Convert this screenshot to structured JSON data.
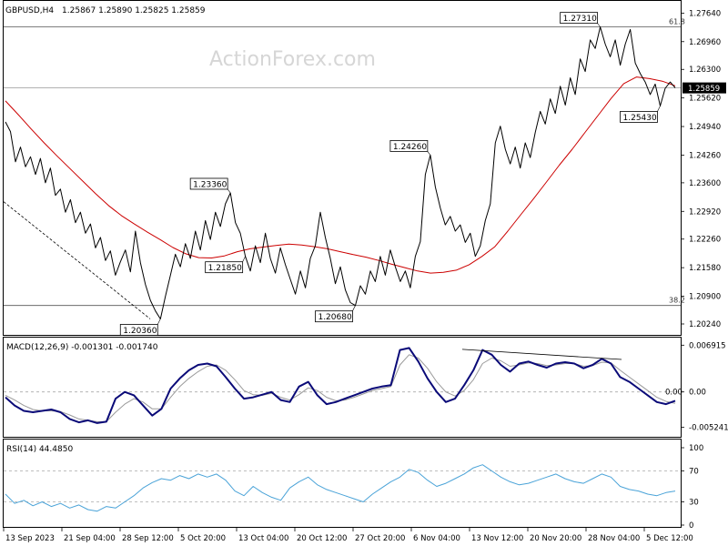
{
  "header": {
    "symbol": "GBPUSD,H4",
    "ohlc": "1.25867 1.25890 1.25825 1.25859"
  },
  "watermark": "ActionForex.com",
  "colors": {
    "price": "#000000",
    "ma": "#cc0000",
    "macd": "#0a0a78",
    "signal": "#9a9a9a",
    "rsi": "#4aa3d8",
    "current_price_bg": "#000000"
  },
  "chart_data": [
    {
      "type": "line",
      "panel": "price",
      "x_labels": [
        "13 Sep 2023",
        "21 Sep 04:00",
        "28 Sep 12:00",
        "5 Oct 20:00",
        "13 Oct 04:00",
        "20 Oct 12:00",
        "27 Oct 20:00",
        "6 Nov 04:00",
        "13 Nov 12:00",
        "20 Nov 20:00",
        "28 Nov 04:00",
        "5 Dec 12:00"
      ],
      "ylim": [
        1.1998,
        1.2793
      ],
      "y_ticks": [
        "1.27640",
        "1.26960",
        "1.26300",
        "1.25620",
        "1.24940",
        "1.24260",
        "1.23600",
        "1.22920",
        "1.22260",
        "1.21580",
        "1.20900",
        "1.20240"
      ],
      "current_price": "1.25859",
      "current_price_value": 1.25859,
      "levels": [
        {
          "label": "61.8",
          "value": 1.2731
        },
        {
          "label": "38.2",
          "value": 1.2068
        }
      ],
      "annotations": [
        {
          "text": "1.27310",
          "value": 1.2731
        },
        {
          "text": "1.23360",
          "value": 1.2336
        },
        {
          "text": "1.24260",
          "value": 1.2426
        },
        {
          "text": "1.21850",
          "value": 1.2185
        },
        {
          "text": "1.20360",
          "value": 1.2036
        },
        {
          "text": "1.20680",
          "value": 1.2068
        },
        {
          "text": "1.25430",
          "value": 1.2543
        }
      ],
      "series": [
        {
          "role": "price",
          "values": [
            1.2505,
            1.2482,
            1.241,
            1.2445,
            1.2398,
            1.2422,
            1.238,
            1.2418,
            1.236,
            1.2395,
            1.233,
            1.2345,
            1.229,
            1.232,
            1.2265,
            1.229,
            1.224,
            1.2262,
            1.2205,
            1.223,
            1.2175,
            1.2198,
            1.214,
            1.2172,
            1.22,
            1.2148,
            1.2245,
            1.217,
            1.2118,
            1.208,
            1.2055,
            1.2036,
            1.209,
            1.214,
            1.219,
            1.216,
            1.2215,
            1.218,
            1.2245,
            1.22,
            1.227,
            1.2225,
            1.229,
            1.2256,
            1.231,
            1.2336,
            1.2265,
            1.224,
            1.2185,
            1.215,
            1.221,
            1.217,
            1.224,
            1.218,
            1.2145,
            1.2205,
            1.2165,
            1.213,
            1.2095,
            1.215,
            1.211,
            1.218,
            1.221,
            1.229,
            1.223,
            1.218,
            1.212,
            1.216,
            1.2105,
            1.2075,
            1.2068,
            1.2115,
            1.2095,
            1.215,
            1.2125,
            1.2185,
            1.214,
            1.22,
            1.216,
            1.2125,
            1.215,
            1.211,
            1.2185,
            1.222,
            1.238,
            1.2426,
            1.235,
            1.23,
            1.226,
            1.228,
            1.2245,
            1.226,
            1.2218,
            1.224,
            1.2185,
            1.221,
            1.227,
            1.231,
            1.2455,
            1.2495,
            1.244,
            1.2405,
            1.2445,
            1.2395,
            1.2455,
            1.242,
            1.248,
            1.253,
            1.25,
            1.256,
            1.2525,
            1.259,
            1.2545,
            1.261,
            1.257,
            1.2655,
            1.2625,
            1.27,
            1.268,
            1.2731,
            1.269,
            1.266,
            1.27,
            1.264,
            1.269,
            1.2725,
            1.2645,
            1.262,
            1.26,
            1.257,
            1.2595,
            1.2543,
            1.2585,
            1.26,
            1.2586
          ]
        },
        {
          "role": "ma",
          "values": [
            1.2555,
            1.2522,
            1.2488,
            1.2455,
            1.2424,
            1.2394,
            1.2364,
            1.2334,
            1.2306,
            1.2282,
            1.2262,
            1.2243,
            1.2225,
            1.2206,
            1.2191,
            1.2182,
            1.2181,
            1.2186,
            1.2196,
            1.2203,
            1.2207,
            1.2211,
            1.2214,
            1.2212,
            1.2208,
            1.2203,
            1.2196,
            1.2189,
            1.2183,
            1.2175,
            1.2166,
            1.2158,
            1.215,
            1.2145,
            1.2147,
            1.2152,
            1.2165,
            1.2185,
            1.2208,
            1.2245,
            1.2284,
            1.2322,
            1.2362,
            1.2402,
            1.244,
            1.248,
            1.252,
            1.256,
            1.2596,
            1.2612,
            1.2608,
            1.2602,
            1.2591
          ]
        },
        {
          "role": "trendline",
          "values": [
            1.2315,
            1.2036
          ]
        }
      ]
    },
    {
      "type": "line",
      "panel": "macd",
      "title": "MACD(12,26,9) -0.001301 -0.001740",
      "ylim": [
        -0.0065,
        0.0079
      ],
      "y_ticks": [
        "0.006915",
        "0.00",
        "-0.005241"
      ],
      "zero_label": "0.00",
      "series": [
        {
          "role": "macd",
          "values": [
            -0.0008,
            -0.002,
            -0.0028,
            -0.003,
            -0.0028,
            -0.0026,
            -0.003,
            -0.004,
            -0.0045,
            -0.0042,
            -0.0046,
            -0.0044,
            -0.001,
            0.0,
            -0.0005,
            -0.002,
            -0.0035,
            -0.0025,
            0.0005,
            0.002,
            0.0032,
            0.004,
            0.0042,
            0.0038,
            0.0022,
            0.0005,
            -0.001,
            -0.0008,
            -0.0004,
            0.0,
            -0.0012,
            -0.0015,
            0.0008,
            0.0015,
            -0.0005,
            -0.0018,
            -0.0015,
            -0.001,
            -0.0005,
            0.0,
            0.0005,
            0.0008,
            0.001,
            0.0062,
            0.0065,
            0.0045,
            0.002,
            0.0,
            -0.0015,
            -0.001,
            0.001,
            0.0032,
            0.0062,
            0.0055,
            0.004,
            0.003,
            0.0042,
            0.0045,
            0.004,
            0.0036,
            0.0042,
            0.0044,
            0.0042,
            0.0035,
            0.004,
            0.0049,
            0.0042,
            0.0022,
            0.0015,
            0.0005,
            -0.0005,
            -0.0015,
            -0.0018,
            -0.0013
          ]
        },
        {
          "role": "signal",
          "values": [
            -0.0005,
            -0.0012,
            -0.002,
            -0.0026,
            -0.0028,
            -0.0028,
            -0.0029,
            -0.0034,
            -0.004,
            -0.0042,
            -0.0044,
            -0.0044,
            -0.003,
            -0.0018,
            -0.001,
            -0.0015,
            -0.0025,
            -0.0025,
            -0.0008,
            0.0008,
            0.002,
            0.003,
            0.0038,
            0.004,
            0.0032,
            0.0018,
            0.0002,
            -0.0004,
            -0.0005,
            -0.0002,
            -0.0008,
            -0.0012,
            -0.0004,
            0.0006,
            0.0002,
            -0.0008,
            -0.0013,
            -0.0012,
            -0.0008,
            -0.0003,
            0.0002,
            0.0005,
            0.0008,
            0.004,
            0.0055,
            0.005,
            0.0035,
            0.0015,
            0.0,
            -0.0006,
            0.0002,
            0.0018,
            0.0042,
            0.005,
            0.0046,
            0.0038,
            0.004,
            0.0043,
            0.0042,
            0.0039,
            0.004,
            0.0042,
            0.0042,
            0.0038,
            0.0039,
            0.0044,
            0.0043,
            0.0032,
            0.0022,
            0.0012,
            0.0002,
            -0.0008,
            -0.0014,
            -0.0017
          ]
        },
        {
          "role": "divergence",
          "values": [
            0.0063,
            0.0048
          ]
        }
      ]
    },
    {
      "type": "line",
      "panel": "rsi",
      "title": "RSI(14) 44.4850",
      "ylim": [
        0,
        100
      ],
      "y_ticks": [
        "100",
        "70",
        "30",
        "0"
      ],
      "levels": [
        70,
        30
      ],
      "series": [
        {
          "role": "rsi",
          "values": [
            40,
            28,
            32,
            25,
            30,
            24,
            28,
            22,
            26,
            20,
            18,
            24,
            22,
            30,
            38,
            48,
            55,
            60,
            58,
            64,
            60,
            66,
            62,
            66,
            58,
            44,
            38,
            50,
            42,
            36,
            32,
            48,
            56,
            62,
            52,
            46,
            42,
            38,
            34,
            30,
            40,
            48,
            56,
            62,
            72,
            68,
            58,
            50,
            54,
            60,
            66,
            74,
            78,
            70,
            62,
            56,
            52,
            54,
            58,
            62,
            66,
            60,
            56,
            54,
            60,
            66,
            62,
            50,
            46,
            44,
            40,
            38,
            42,
            44
          ]
        }
      ]
    }
  ]
}
